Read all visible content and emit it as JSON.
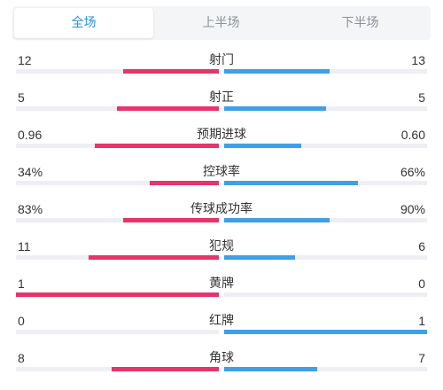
{
  "tabs": [
    "全场",
    "上半场",
    "下半场"
  ],
  "active_tab": 0,
  "colors": {
    "home": "#e8336b",
    "away": "#3f9fe8",
    "active_tab": "#2b8fde"
  },
  "stats": [
    {
      "label": "射门",
      "home": "12",
      "away": "13",
      "home_fill": 0.47,
      "away_fill": 0.52
    },
    {
      "label": "射正",
      "home": "5",
      "away": "5",
      "home_fill": 0.5,
      "away_fill": 0.5
    },
    {
      "label": "预期进球",
      "home": "0.96",
      "away": "0.60",
      "home_fill": 0.61,
      "away_fill": 0.38
    },
    {
      "label": "控球率",
      "home": "34%",
      "away": "66%",
      "home_fill": 0.34,
      "away_fill": 0.66
    },
    {
      "label": "传球成功率",
      "home": "83%",
      "away": "90%",
      "home_fill": 0.47,
      "away_fill": 0.52
    },
    {
      "label": "犯规",
      "home": "11",
      "away": "6",
      "home_fill": 0.64,
      "away_fill": 0.35
    },
    {
      "label": "黄牌",
      "home": "1",
      "away": "0",
      "home_fill": 1.0,
      "away_fill": 0.0
    },
    {
      "label": "红牌",
      "home": "0",
      "away": "1",
      "home_fill": 0.0,
      "away_fill": 1.0
    },
    {
      "label": "角球",
      "home": "8",
      "away": "7",
      "home_fill": 0.53,
      "away_fill": 0.46
    }
  ]
}
